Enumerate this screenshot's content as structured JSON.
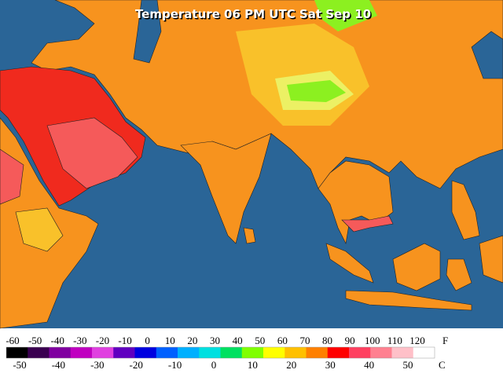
{
  "title": "Temperature 06 PM UTC Sat Sep 10",
  "legend": {
    "f_labels": [
      "-60",
      "-50",
      "-40",
      "-30",
      "-20",
      "-10",
      "0",
      "10",
      "20",
      "30",
      "40",
      "50",
      "60",
      "70",
      "80",
      "90",
      "100",
      "110",
      "120"
    ],
    "f_unit": "F",
    "c_labels": [
      "-50",
      "-40",
      "-30",
      "-20",
      "-10",
      "0",
      "10",
      "20",
      "30",
      "40",
      "50"
    ],
    "c_unit": "C",
    "colors": [
      "#000000",
      "#3a0050",
      "#8000a0",
      "#c000c0",
      "#e040e0",
      "#6000c0",
      "#0000e0",
      "#0060ff",
      "#00b0ff",
      "#00e0e0",
      "#00e060",
      "#80ff00",
      "#ffff00",
      "#ffc000",
      "#ff8000",
      "#ff0000",
      "#ff4060",
      "#ff8090",
      "#ffc0c8",
      "#ffffff"
    ]
  }
}
